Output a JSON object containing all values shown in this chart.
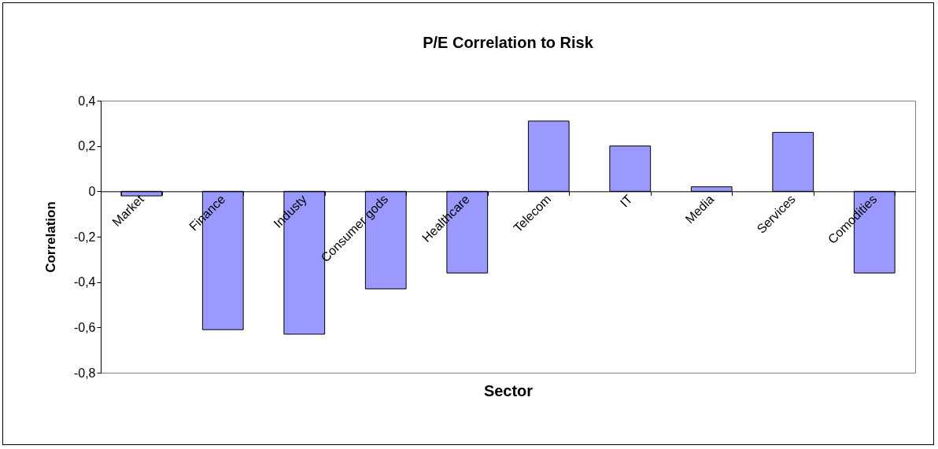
{
  "chart_data": {
    "type": "bar",
    "title": "P/E Correlation to Risk",
    "xlabel": "Sector",
    "ylabel": "Correlation",
    "categories": [
      "Market",
      "Finance",
      "Industy",
      "Consumer gods",
      "Healthcare",
      "Telecom",
      "IT",
      "Media",
      "Services",
      "Comodities"
    ],
    "values": [
      -0.02,
      -0.61,
      -0.63,
      -0.43,
      -0.36,
      0.31,
      0.2,
      0.02,
      0.26,
      -0.36
    ],
    "color": "#9999ff",
    "ylim": [
      -0.8,
      0.4
    ],
    "yticks": [
      {
        "value": -0.8,
        "label": "-0,8"
      },
      {
        "value": -0.6,
        "label": "-0,6"
      },
      {
        "value": -0.4,
        "label": "-0,4"
      },
      {
        "value": -0.2,
        "label": "-0,2"
      },
      0,
      {
        "value": 0.2,
        "label": "0,2"
      },
      {
        "value": 0.4,
        "label": "0,4"
      }
    ],
    "grid": false
  }
}
